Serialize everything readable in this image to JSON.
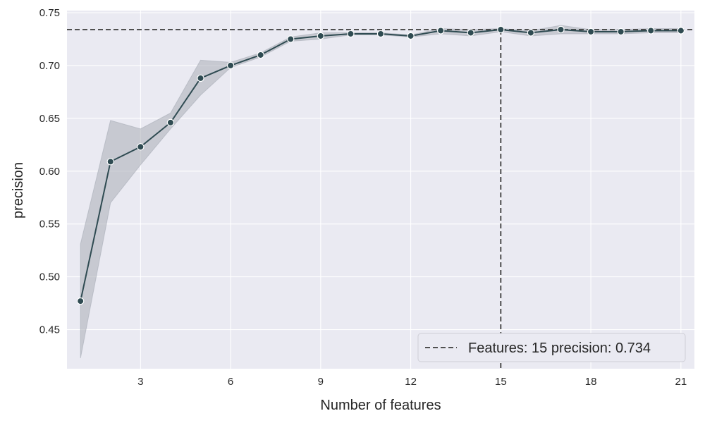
{
  "chart_data": {
    "type": "line",
    "xlabel": "Number of features",
    "ylabel": "precision",
    "xlim": [
      0.55,
      21.45
    ],
    "ylim": [
      0.413,
      0.752
    ],
    "xticks": [
      3,
      6,
      9,
      12,
      15,
      18,
      21
    ],
    "yticks": [
      0.45,
      0.5,
      0.55,
      0.6,
      0.65,
      0.7,
      0.75
    ],
    "grid": true,
    "series": [
      {
        "x": [
          1,
          2,
          3,
          4,
          5,
          6,
          7,
          8,
          9,
          10,
          11,
          12,
          13,
          14,
          15,
          16,
          17,
          18,
          19,
          20,
          21
        ],
        "values": [
          0.477,
          0.609,
          0.623,
          0.646,
          0.688,
          0.7,
          0.71,
          0.725,
          0.728,
          0.73,
          0.73,
          0.728,
          0.733,
          0.731,
          0.734,
          0.731,
          0.734,
          0.732,
          0.732,
          0.733,
          0.733
        ],
        "ci_lower": [
          0.423,
          0.57,
          0.606,
          0.64,
          0.672,
          0.698,
          0.708,
          0.723,
          0.725,
          0.729,
          0.729,
          0.727,
          0.73,
          0.728,
          0.732,
          0.728,
          0.73,
          0.73,
          0.73,
          0.731,
          0.731
        ],
        "ci_upper": [
          0.531,
          0.648,
          0.64,
          0.655,
          0.705,
          0.703,
          0.712,
          0.727,
          0.731,
          0.731,
          0.731,
          0.729,
          0.735,
          0.734,
          0.735,
          0.733,
          0.738,
          0.734,
          0.734,
          0.735,
          0.735
        ]
      }
    ],
    "reference_lines": {
      "x": 15,
      "y": 0.734
    },
    "legend": {
      "label": "Features: 15   precision: 0.734",
      "position": "lower-right"
    },
    "colors": {
      "line": "#2f4b52",
      "band": "#a9adb7",
      "ref_line": "#3a3a3a",
      "plot_bg": "#eaeaf2",
      "grid": "#ffffff"
    }
  }
}
